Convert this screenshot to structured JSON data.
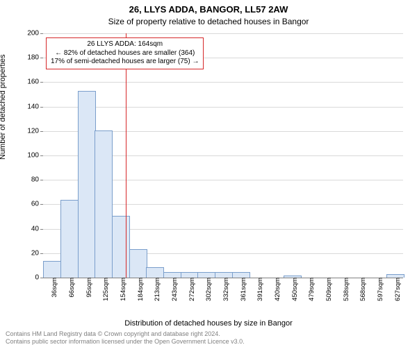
{
  "title_line1": "26, LLYS ADDA, BANGOR, LL57 2AW",
  "title_line2": "Size of property relative to detached houses in Bangor",
  "ylabel": "Number of detached properties",
  "xlabel": "Distribution of detached houses by size in Bangor",
  "attribution_line1": "Contains HM Land Registry data © Crown copyright and database right 2024.",
  "attribution_line2": "Contains public sector information licensed under the Open Government Licence v3.0.",
  "chart": {
    "type": "histogram",
    "background_color": "#ffffff",
    "grid_color": "#d9d9d9",
    "axis_color": "#808080",
    "bar_fill": "#dbe7f6",
    "bar_border": "#7a9ecb",
    "marker_color": "#d62728",
    "annotation_border": "#d62728",
    "ylim": [
      0,
      200
    ],
    "ytick_step": 20,
    "categories": [
      "36sqm",
      "66sqm",
      "95sqm",
      "125sqm",
      "154sqm",
      "184sqm",
      "213sqm",
      "243sqm",
      "272sqm",
      "302sqm",
      "332sqm",
      "361sqm",
      "391sqm",
      "420sqm",
      "450sqm",
      "479sqm",
      "509sqm",
      "538sqm",
      "568sqm",
      "597sqm",
      "627sqm"
    ],
    "values": [
      13,
      63,
      152,
      120,
      50,
      23,
      8,
      4,
      4,
      4,
      4,
      4,
      0,
      0,
      1,
      0,
      0,
      0,
      0,
      0,
      2
    ],
    "bar_width_ratio": 0.98,
    "marker_x": 164,
    "marker_x_min": 36,
    "marker_x_max": 627,
    "annotation": {
      "line1": "26 LLYS ADDA: 164sqm",
      "line2": "← 82% of detached houses are smaller (364)",
      "line3": "17% of semi-detached houses are larger (75) →"
    },
    "title_fontsize": 13,
    "subtitle_fontsize": 12,
    "axis_label_fontsize": 11,
    "tick_fontsize": 10,
    "attrib_fontsize": 9,
    "attrib_color": "#808080"
  }
}
